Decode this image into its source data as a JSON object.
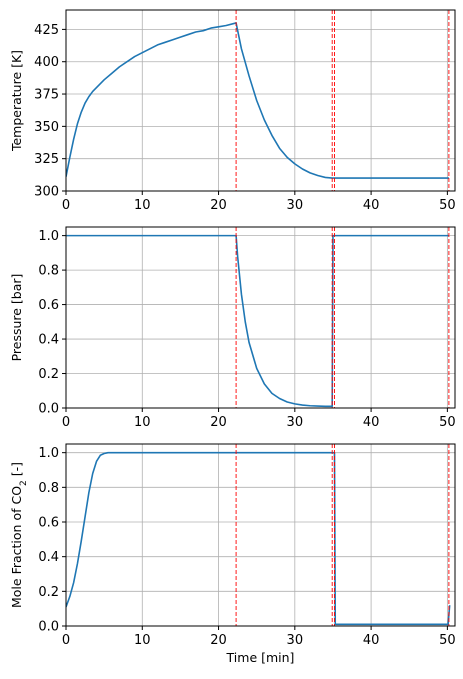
{
  "chart_data": [
    {
      "type": "line",
      "ylabel": "Temperature [K]",
      "xlabel": "",
      "xlim": [
        0,
        51
      ],
      "ylim": [
        300,
        440
      ],
      "xticks": [
        0,
        10,
        20,
        30,
        40,
        50
      ],
      "yticks": [
        300,
        325,
        350,
        375,
        400,
        425
      ],
      "grid": true,
      "line_color": "#1f77b4",
      "vline_color": "#ff0000",
      "vlines": [
        22.3,
        34.9,
        35.2,
        50.2
      ],
      "series": [
        {
          "x": [
            0,
            0.5,
            1,
            1.5,
            2,
            2.5,
            3,
            3.5,
            4,
            5,
            6,
            7,
            8,
            9,
            10,
            11,
            12,
            13,
            14,
            15,
            16,
            17,
            18,
            19,
            20,
            21,
            22.3,
            23,
            24,
            25,
            26,
            27,
            28,
            29,
            30,
            31,
            32,
            33,
            34,
            34.9,
            35.2,
            40,
            45,
            50.2
          ],
          "values": [
            311,
            326,
            340,
            352,
            361,
            368,
            373,
            377,
            380,
            386,
            391,
            396,
            400,
            404,
            407,
            410,
            413,
            415,
            417,
            419,
            421,
            423,
            424,
            426,
            427,
            428,
            430,
            410,
            389,
            370,
            355,
            343,
            333,
            326,
            321,
            317,
            314,
            312,
            310.5,
            310,
            310,
            310,
            310,
            310
          ]
        }
      ]
    },
    {
      "type": "line",
      "ylabel": "Pressure [bar]",
      "xlabel": "",
      "xlim": [
        0,
        51
      ],
      "ylim": [
        0,
        1.05
      ],
      "xticks": [
        0,
        10,
        20,
        30,
        40,
        50
      ],
      "yticks": [
        "0.0",
        "0.2",
        "0.4",
        "0.6",
        "0.8",
        "1.0"
      ],
      "grid": true,
      "line_color": "#1f77b4",
      "vline_color": "#ff0000",
      "vlines": [
        22.3,
        34.9,
        35.2,
        50.2
      ],
      "series": [
        {
          "x": [
            0,
            22.3,
            22.5,
            23,
            23.5,
            24,
            25,
            26,
            27,
            28,
            29,
            30,
            31,
            32,
            33,
            34,
            34.9,
            35.0,
            35.2,
            40,
            45,
            50.2
          ],
          "values": [
            1.0,
            1.0,
            0.88,
            0.66,
            0.5,
            0.38,
            0.23,
            0.14,
            0.085,
            0.055,
            0.035,
            0.024,
            0.017,
            0.013,
            0.011,
            0.01,
            0.01,
            1.0,
            1.0,
            1.0,
            1.0,
            1.0
          ]
        }
      ]
    },
    {
      "type": "line",
      "ylabel": "Mole Fraction of CO",
      "ylabel_sub": "2",
      "ylabel_suffix": " [-]",
      "xlabel": "Time [min]",
      "xlim": [
        0,
        51
      ],
      "ylim": [
        0,
        1.05
      ],
      "xticks": [
        0,
        10,
        20,
        30,
        40,
        50
      ],
      "yticks": [
        "0.0",
        "0.2",
        "0.4",
        "0.6",
        "0.8",
        "1.0"
      ],
      "grid": true,
      "line_color": "#1f77b4",
      "vline_color": "#ff0000",
      "vlines": [
        22.3,
        34.9,
        35.2,
        50.2
      ],
      "series": [
        {
          "x": [
            0,
            0.5,
            1,
            1.5,
            2,
            2.5,
            3,
            3.5,
            4,
            4.5,
            5,
            5.5,
            6,
            7,
            10,
            20,
            22.3,
            30,
            34.9,
            35.2,
            35.3,
            40,
            45,
            50.1,
            50.3
          ],
          "values": [
            0.11,
            0.17,
            0.25,
            0.36,
            0.49,
            0.63,
            0.77,
            0.88,
            0.95,
            0.985,
            0.995,
            1.0,
            1.0,
            1.0,
            1.0,
            1.0,
            1.0,
            1.0,
            1.0,
            1.0,
            0.01,
            0.01,
            0.01,
            0.01,
            0.12
          ]
        }
      ]
    }
  ]
}
